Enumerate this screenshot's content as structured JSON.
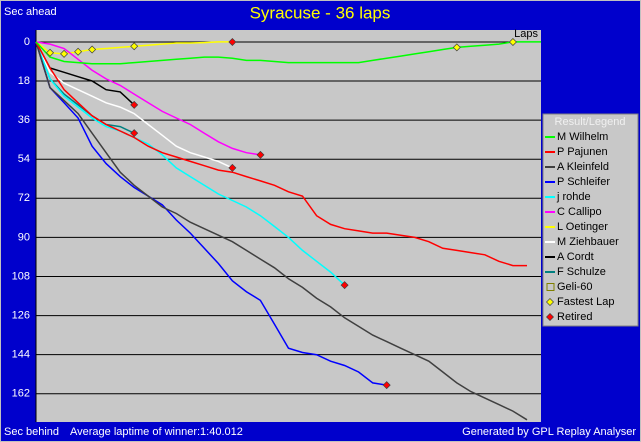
{
  "chart_data": {
    "type": "line",
    "title": "Syracuse - 36 laps",
    "y_label_top": "Sec ahead",
    "y_label_bottom": "Sec behind",
    "x_label": "Laps",
    "note": "Average laptime of winner:1:40.012",
    "credit": "Generated by GPL Replay Analyser",
    "legend_title": "Result/Legend",
    "legend_position": "right",
    "grid": true,
    "y_reversed": true,
    "xlim": [
      0,
      36
    ],
    "ylim": [
      -5.5,
      175
    ],
    "yticks": [
      0,
      18,
      36,
      54,
      72,
      90,
      108,
      126,
      144,
      162
    ],
    "x": [
      0,
      1,
      2,
      3,
      4,
      5,
      6,
      7,
      8,
      9,
      10,
      11,
      12,
      13,
      14,
      15,
      16,
      17,
      18,
      19,
      20,
      21,
      22,
      23,
      24,
      25,
      26,
      27,
      28,
      29,
      30,
      31,
      32,
      33,
      34,
      35,
      36
    ],
    "series": [
      {
        "name": "M Wilhelm",
        "color": "#00ff00",
        "values": [
          0,
          7,
          9,
          9.5,
          10,
          10,
          10,
          9.5,
          9,
          8.5,
          8,
          7.5,
          7,
          7,
          7.5,
          8.5,
          8.5,
          9,
          9.5,
          9.5,
          9.5,
          9.5,
          9.5,
          9.5,
          8.5,
          7.5,
          6.5,
          5.5,
          4.5,
          3.5,
          2.5,
          2,
          1.5,
          1,
          0,
          0,
          0
        ]
      },
      {
        "name": "P Pajunen",
        "color": "#ff0000",
        "values": [
          0,
          12,
          22,
          28,
          34,
          38,
          41,
          44,
          48,
          51,
          53,
          55,
          57,
          59,
          60,
          62,
          64,
          66,
          69,
          71,
          80,
          84,
          86,
          87,
          88,
          88,
          89,
          90,
          92,
          95,
          96,
          97,
          98,
          101,
          103,
          103,
          null
        ]
      },
      {
        "name": "A Kleinfeld",
        "color": "#404040",
        "values": [
          0,
          21,
          27,
          33,
          42,
          51,
          60,
          66,
          71,
          76,
          79,
          83,
          86,
          89,
          92,
          96,
          100,
          104,
          109,
          113,
          118,
          122,
          127,
          131,
          135,
          138,
          141,
          144,
          147,
          152,
          157,
          161,
          164,
          167,
          170,
          174,
          null
        ]
      },
      {
        "name": "P Schleifer",
        "color": "#0000ff",
        "values": [
          0,
          21,
          28,
          35,
          48,
          56,
          62,
          67,
          71,
          75,
          82,
          88,
          95,
          102,
          110,
          115,
          119,
          130,
          141,
          143,
          144,
          147,
          149,
          152,
          157,
          158,
          null,
          null,
          null,
          null,
          null,
          null,
          null,
          null,
          null,
          null,
          null
        ]
      },
      {
        "name": "j rohde",
        "color": "#00ffff",
        "values": [
          0,
          17,
          25,
          30,
          35,
          39,
          41,
          44,
          47,
          52,
          58,
          62,
          66,
          70,
          73,
          76,
          80,
          85,
          90,
          96,
          101,
          106,
          112,
          null,
          null,
          null,
          null,
          null,
          null,
          null,
          null,
          null,
          null,
          null,
          null,
          null,
          null
        ]
      },
      {
        "name": "C Callipo",
        "color": "#ff00ff",
        "values": [
          0,
          1,
          3,
          8,
          13,
          17,
          20,
          24,
          28,
          32,
          35,
          38,
          42,
          46,
          49,
          51,
          52,
          null,
          null,
          null,
          null,
          null,
          null,
          null,
          null,
          null,
          null,
          null,
          null,
          null,
          null,
          null,
          null,
          null,
          null,
          null,
          null
        ]
      },
      {
        "name": "L Oetinger",
        "color": "#ffff00",
        "values": [
          0,
          5,
          5.5,
          4.5,
          3.5,
          3,
          2.5,
          2,
          1.5,
          1,
          0.5,
          0.5,
          0.3,
          0,
          0,
          null,
          null,
          null,
          null,
          null,
          null,
          null,
          null,
          null,
          null,
          null,
          null,
          null,
          null,
          null,
          null,
          null,
          null,
          null,
          null,
          null,
          null
        ]
      },
      {
        "name": "M Ziehbauer",
        "color": "#ffffff",
        "values": [
          0,
          14,
          19,
          22,
          25,
          28,
          30,
          33,
          38,
          43,
          48,
          51,
          53,
          55,
          58,
          null,
          null,
          null,
          null,
          null,
          null,
          null,
          null,
          null,
          null,
          null,
          null,
          null,
          null,
          null,
          null,
          null,
          null,
          null,
          null,
          null,
          null
        ]
      },
      {
        "name": "A Cordt",
        "color": "#000000",
        "values": [
          0,
          12,
          14,
          16,
          18,
          22,
          23,
          29,
          null,
          null,
          null,
          null,
          null,
          null,
          null,
          null,
          null,
          null,
          null,
          null,
          null,
          null,
          null,
          null,
          null,
          null,
          null,
          null,
          null,
          null,
          null,
          null,
          null,
          null,
          null,
          null,
          null
        ]
      },
      {
        "name": "F Schulze",
        "color": "#008080",
        "values": [
          0,
          17,
          24,
          29,
          34,
          38,
          39,
          42,
          null,
          null,
          null,
          null,
          null,
          null,
          null,
          null,
          null,
          null,
          null,
          null,
          null,
          null,
          null,
          null,
          null,
          null,
          null,
          null,
          null,
          null,
          null,
          null,
          null,
          null,
          null,
          null,
          null
        ]
      },
      {
        "name": "Geli-60",
        "color": "#808000",
        "marker": "square"
      }
    ],
    "markers": [
      {
        "name": "Fastest Lap",
        "color": "#ffff00",
        "x": [
          1,
          2,
          3,
          4,
          7,
          30,
          34
        ],
        "values": [
          5,
          5.5,
          4.5,
          3.5,
          2,
          2.5,
          0
        ]
      },
      {
        "name": "Retired",
        "color": "#ff0000",
        "x": [
          14,
          14,
          16,
          22,
          25,
          7,
          7
        ],
        "values": [
          0,
          58,
          52,
          112,
          158,
          29,
          42
        ]
      }
    ]
  }
}
